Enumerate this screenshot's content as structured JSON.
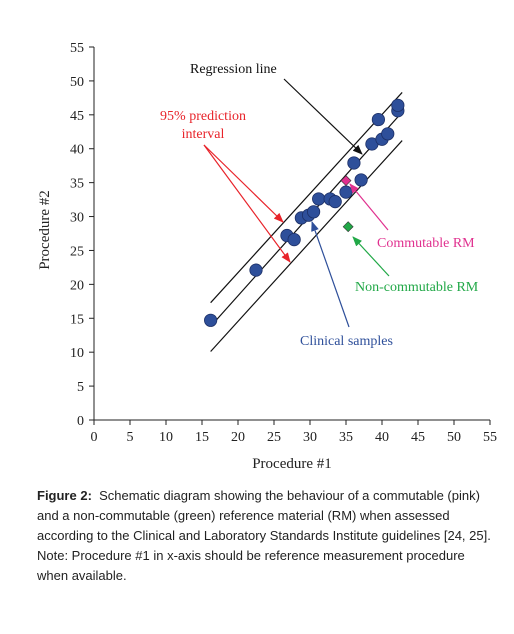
{
  "chart_data": {
    "type": "scatter",
    "xlabel": "Procedure #1",
    "ylabel": "Procedure #2",
    "xlim": [
      0,
      55
    ],
    "ylim": [
      0,
      55
    ],
    "xticks": [
      0,
      5,
      10,
      15,
      20,
      25,
      30,
      35,
      40,
      45,
      50,
      55
    ],
    "yticks": [
      0,
      5,
      10,
      15,
      20,
      25,
      30,
      35,
      40,
      45,
      50,
      55
    ],
    "grid": false,
    "series": [
      {
        "name": "Clinical samples",
        "color": "#2e4f9a",
        "marker": "circle",
        "points": [
          [
            16.2,
            14.7
          ],
          [
            22.5,
            22.1
          ],
          [
            26.8,
            27.2
          ],
          [
            27.8,
            26.6
          ],
          [
            28.8,
            29.8
          ],
          [
            29.8,
            30.2
          ],
          [
            30.5,
            30.7
          ],
          [
            31.2,
            32.6
          ],
          [
            32.8,
            32.6
          ],
          [
            33.5,
            32.2
          ],
          [
            35.0,
            33.6
          ],
          [
            36.1,
            37.9
          ],
          [
            37.1,
            35.4
          ],
          [
            38.6,
            40.7
          ],
          [
            39.5,
            44.3
          ],
          [
            40.0,
            41.4
          ],
          [
            40.8,
            42.2
          ],
          [
            42.2,
            45.6
          ],
          [
            42.2,
            46.4
          ]
        ]
      },
      {
        "name": "Commutable RM",
        "color": "#e0318f",
        "marker": "diamond",
        "points": [
          [
            35.0,
            35.3
          ]
        ]
      },
      {
        "name": "Non-commutable RM",
        "color": "#21a847",
        "marker": "diamond",
        "points": [
          [
            35.3,
            28.5
          ]
        ]
      }
    ],
    "lines": [
      {
        "name": "Regression line",
        "from": [
          16.2,
          13.8
        ],
        "to": [
          42.8,
          45.4
        ]
      },
      {
        "name": "upper prediction bound",
        "from": [
          16.2,
          17.3
        ],
        "to": [
          42.8,
          48.3
        ]
      },
      {
        "name": "lower prediction bound",
        "from": [
          16.2,
          10.1
        ],
        "to": [
          42.8,
          41.2
        ]
      }
    ],
    "annotations": [
      {
        "text": "Regression line",
        "color": "#111111"
      },
      {
        "text": "95% prediction",
        "color": "#e8232a"
      },
      {
        "text": "interval",
        "color": "#e8232a"
      },
      {
        "text": "Commutable RM",
        "color": "#e0318f"
      },
      {
        "text": "Non-commutable RM",
        "color": "#21a847"
      },
      {
        "text": "Clinical samples",
        "color": "#2e4f9a"
      }
    ]
  },
  "caption": {
    "label": "Figure 2:",
    "text": "Schematic diagram showing the behaviour of a commutable (pink) and a non-commutable (green) reference material (RM) when assessed according to the Clinical and Laboratory Standards Institute guidelines [24, 25].",
    "note": "Note: Procedure #1 in x-axis should be reference measurement procedure when available."
  }
}
